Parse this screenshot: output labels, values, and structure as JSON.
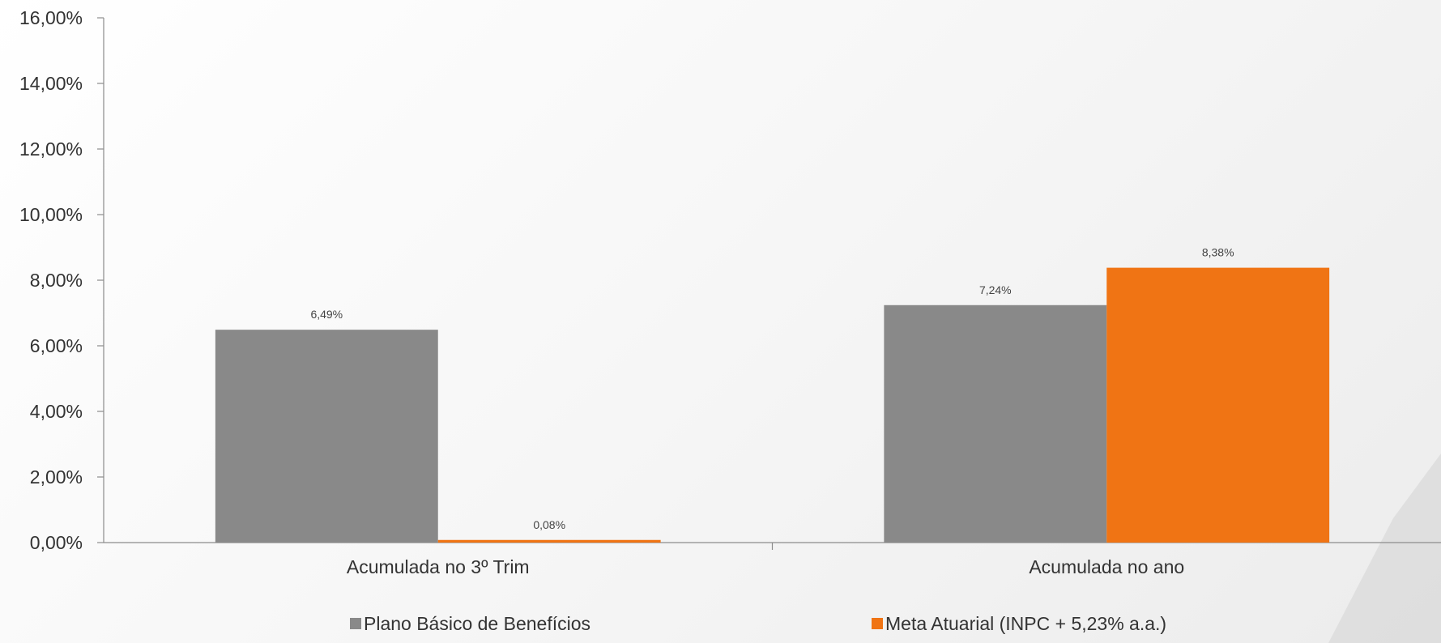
{
  "chart_data": {
    "type": "bar",
    "categories": [
      "Acumulada no 3º Trim",
      "Acumulada no ano"
    ],
    "series": [
      {
        "name": "Plano Básico de Benefícios",
        "color": "#898989",
        "values": [
          6.49,
          7.24
        ],
        "labels": [
          "6,49%",
          "7,24%"
        ]
      },
      {
        "name": "Meta Atuarial (INPC + 5,23% a.a.)",
        "color": "#f07414",
        "values": [
          0.08,
          8.38
        ],
        "labels": [
          "0,08%",
          "8,38%"
        ]
      }
    ],
    "ylim": [
      0,
      16
    ],
    "yticks": [
      0,
      2,
      4,
      6,
      8,
      10,
      12,
      14,
      16
    ],
    "ytick_labels": [
      "0,00%",
      "2,00%",
      "4,00%",
      "6,00%",
      "8,00%",
      "10,00%",
      "12,00%",
      "14,00%",
      "16,00%"
    ],
    "grid": false,
    "legend_position": "bottom"
  }
}
